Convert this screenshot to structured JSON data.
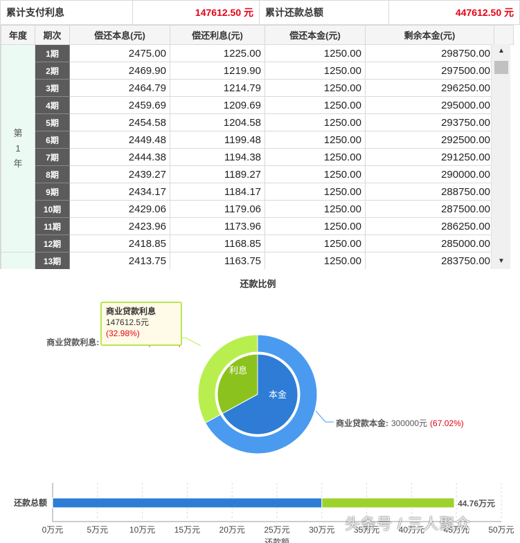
{
  "summary": {
    "interest_label": "累计支付利息",
    "interest_value": "147612.50 元",
    "total_label": "累计还款总额",
    "total_value": "447612.50 元"
  },
  "table": {
    "headers": [
      "年度",
      "期次",
      "偿还本息(元)",
      "偿还利息(元)",
      "偿还本金(元)",
      "剩余本金(元)"
    ],
    "year_label_chars": [
      "第",
      "1",
      "年"
    ],
    "rows": [
      {
        "period": "1期",
        "total": "2475.00",
        "interest": "1225.00",
        "principal": "1250.00",
        "remaining": "298750.00"
      },
      {
        "period": "2期",
        "total": "2469.90",
        "interest": "1219.90",
        "principal": "1250.00",
        "remaining": "297500.00"
      },
      {
        "period": "3期",
        "total": "2464.79",
        "interest": "1214.79",
        "principal": "1250.00",
        "remaining": "296250.00"
      },
      {
        "period": "4期",
        "total": "2459.69",
        "interest": "1209.69",
        "principal": "1250.00",
        "remaining": "295000.00"
      },
      {
        "period": "5期",
        "total": "2454.58",
        "interest": "1204.58",
        "principal": "1250.00",
        "remaining": "293750.00"
      },
      {
        "period": "6期",
        "total": "2449.48",
        "interest": "1199.48",
        "principal": "1250.00",
        "remaining": "292500.00"
      },
      {
        "period": "7期",
        "total": "2444.38",
        "interest": "1194.38",
        "principal": "1250.00",
        "remaining": "291250.00"
      },
      {
        "period": "8期",
        "total": "2439.27",
        "interest": "1189.27",
        "principal": "1250.00",
        "remaining": "290000.00"
      },
      {
        "period": "9期",
        "total": "2434.17",
        "interest": "1184.17",
        "principal": "1250.00",
        "remaining": "288750.00"
      },
      {
        "period": "10期",
        "total": "2429.06",
        "interest": "1179.06",
        "principal": "1250.00",
        "remaining": "287500.00"
      },
      {
        "period": "11期",
        "total": "2423.96",
        "interest": "1173.96",
        "principal": "1250.00",
        "remaining": "286250.00"
      },
      {
        "period": "12期",
        "total": "2418.85",
        "interest": "1168.85",
        "principal": "1250.00",
        "remaining": "285000.00"
      },
      {
        "period": "13期",
        "total": "2413.75",
        "interest": "1163.75",
        "principal": "1250.00",
        "remaining": "283750.00"
      }
    ]
  },
  "chart_data": [
    {
      "type": "pie",
      "title": "还款比例",
      "inner_labels": [
        "利息",
        "本金"
      ],
      "slices": [
        {
          "name": "商业贷款利息",
          "value": 147612.5,
          "value_label": "147612.5元",
          "percent_label": "(32.98%)",
          "color": "#b9ee4f",
          "inner_color": "#8cc21e"
        },
        {
          "name": "商业贷款本金",
          "value": 300000,
          "value_label": "300000元",
          "percent_label": "(67.02%)",
          "color": "#4a9af0",
          "inner_color": "#2e7cd6"
        }
      ],
      "outer_labels": {
        "interest": {
          "name": "商业贷款利息:",
          "value": "147612.5元",
          "pct": "(32.98%)"
        },
        "principal": {
          "name": "商业贷款本金:",
          "value": "300000元",
          "pct": "(67.02%)"
        }
      },
      "tooltip": {
        "title": "商业贷款利息",
        "value": "147612.5元",
        "percent": "(32.98%)"
      }
    },
    {
      "type": "bar",
      "orientation": "horizontal",
      "stacked": true,
      "categories": [
        "还款总额"
      ],
      "series": [
        {
          "values": [
            30
          ],
          "color": "#2e7cd6"
        },
        {
          "values": [
            14.76
          ],
          "color": "#9dd22c"
        }
      ],
      "total_label": "44.76万元",
      "xlim": [
        0,
        50
      ],
      "xticks": [
        "0万元",
        "5万元",
        "10万元",
        "15万元",
        "20万元",
        "25万元",
        "30万元",
        "35万元",
        "40万元",
        "45万元",
        "50万元"
      ],
      "xlabel": "还款额"
    }
  ],
  "watermark": "头条号 / 三人聚众"
}
